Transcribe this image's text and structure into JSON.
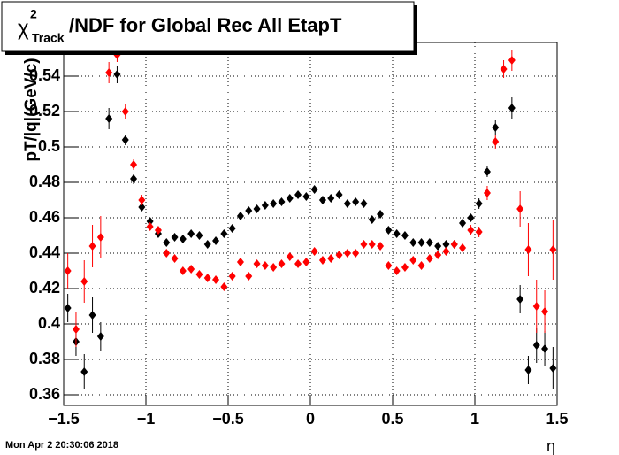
{
  "chart_data": {
    "type": "scatter",
    "title_parts": [
      "χ",
      "2",
      "Track",
      "/NDF for Global Rec All EtapT"
    ],
    "ylabel": "pT/|q|(GeV/c)",
    "xlabel": "η",
    "date": "Mon Apr  2 20:30:06 2018",
    "grid": true,
    "xlim": [
      -1.5,
      1.5
    ],
    "ylim": [
      0.354,
      0.559
    ],
    "xticks": [
      {
        "value": -1.5,
        "label": "−1.5"
      },
      {
        "value": -1,
        "label": "−1"
      },
      {
        "value": -0.5,
        "label": "−0.5"
      },
      0,
      0.5,
      1,
      1.5
    ],
    "yticks": [
      0.36,
      0.38,
      0.4,
      0.42,
      0.44,
      0.46,
      0.48,
      0.5,
      0.52,
      0.54
    ],
    "x": [
      -1.475,
      -1.425,
      -1.375,
      -1.325,
      -1.275,
      -1.225,
      -1.175,
      -1.125,
      -1.075,
      -1.025,
      -0.975,
      -0.925,
      -0.875,
      -0.825,
      -0.775,
      -0.725,
      -0.675,
      -0.625,
      -0.575,
      -0.525,
      -0.475,
      -0.425,
      -0.375,
      -0.325,
      -0.275,
      -0.225,
      -0.175,
      -0.125,
      -0.075,
      -0.025,
      0.025,
      0.075,
      0.125,
      0.175,
      0.225,
      0.275,
      0.325,
      0.375,
      0.425,
      0.475,
      0.525,
      0.575,
      0.625,
      0.675,
      0.725,
      0.775,
      0.825,
      0.875,
      0.925,
      0.975,
      1.025,
      1.075,
      1.125,
      1.175,
      1.225,
      1.275,
      1.325,
      1.375,
      1.425,
      1.475
    ],
    "series": [
      {
        "color": "#000000",
        "values": [
          0.409,
          0.39,
          0.373,
          0.405,
          0.393,
          0.516,
          0.541,
          0.504,
          0.482,
          0.466,
          0.458,
          0.451,
          0.446,
          0.449,
          0.448,
          0.451,
          0.45,
          0.445,
          0.447,
          0.451,
          0.454,
          0.461,
          0.464,
          0.465,
          0.467,
          0.468,
          0.469,
          0.471,
          0.473,
          0.472,
          0.476,
          0.47,
          0.471,
          0.473,
          0.468,
          0.469,
          0.468,
          0.459,
          0.462,
          0.453,
          0.451,
          0.45,
          0.446,
          0.446,
          0.446,
          0.444,
          0.445,
          0.445,
          0.457,
          0.46,
          0.468,
          0.486,
          0.511,
          null,
          0.522,
          0.414,
          0.374,
          0.388,
          0.386,
          0.375
        ],
        "errors": [
          0.008,
          0.008,
          0.01,
          0.01,
          0.008,
          0.006,
          0.005,
          0.003,
          0.003,
          0.002,
          0.002,
          0.002,
          0.002,
          0.002,
          0.002,
          0.002,
          0.002,
          0.002,
          0.002,
          0.002,
          0.002,
          0.002,
          0.002,
          0.002,
          0.002,
          0.002,
          0.002,
          0.002,
          0.002,
          0.002,
          0.002,
          0.002,
          0.002,
          0.002,
          0.002,
          0.002,
          0.002,
          0.002,
          0.002,
          0.002,
          0.002,
          0.002,
          0.002,
          0.002,
          0.002,
          0.002,
          0.002,
          0.002,
          0.002,
          0.002,
          0.003,
          0.003,
          0.004,
          null,
          0.006,
          0.008,
          0.008,
          0.01,
          0.01,
          0.012
        ]
      },
      {
        "color": "#ff0000",
        "values": [
          0.43,
          0.397,
          0.424,
          0.444,
          0.449,
          0.542,
          0.552,
          0.52,
          0.49,
          0.47,
          0.455,
          0.453,
          0.44,
          0.437,
          0.43,
          0.431,
          0.428,
          0.426,
          0.425,
          0.421,
          0.427,
          0.435,
          0.427,
          0.434,
          0.433,
          0.432,
          0.434,
          0.438,
          0.434,
          0.435,
          0.441,
          0.436,
          0.437,
          0.439,
          0.44,
          0.44,
          0.445,
          0.445,
          0.444,
          0.433,
          0.43,
          0.432,
          0.436,
          0.433,
          0.437,
          0.439,
          0.441,
          0.445,
          0.443,
          0.453,
          0.452,
          0.474,
          0.503,
          0.544,
          0.549,
          0.465,
          0.442,
          0.41,
          0.407,
          0.442
        ],
        "errors": [
          0.01,
          0.01,
          0.012,
          0.012,
          0.012,
          0.006,
          0.004,
          0.004,
          0.003,
          0.003,
          0.002,
          0.002,
          0.002,
          0.002,
          0.002,
          0.002,
          0.002,
          0.002,
          0.002,
          0.002,
          0.002,
          0.002,
          0.002,
          0.002,
          0.002,
          0.002,
          0.002,
          0.002,
          0.002,
          0.002,
          0.002,
          0.002,
          0.002,
          0.002,
          0.002,
          0.002,
          0.002,
          0.002,
          0.002,
          0.002,
          0.002,
          0.002,
          0.002,
          0.002,
          0.002,
          0.002,
          0.002,
          0.002,
          0.002,
          0.003,
          0.003,
          0.004,
          0.004,
          0.005,
          0.006,
          0.01,
          0.015,
          0.015,
          0.012,
          0.017
        ]
      }
    ]
  }
}
